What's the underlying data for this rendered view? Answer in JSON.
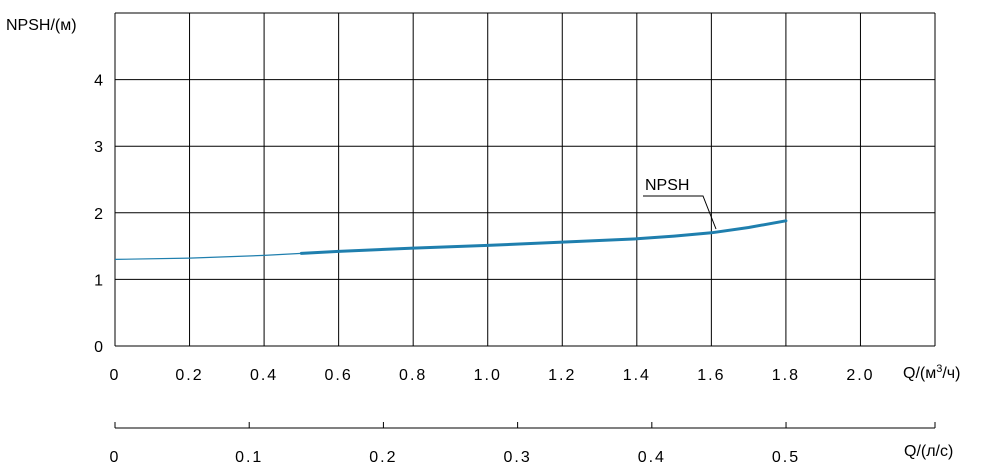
{
  "chart_data": {
    "type": "line",
    "ylabel": "NPSH/(м)",
    "xlabel_main_prefix": "Q/(м",
    "xlabel_main_sup": "3",
    "xlabel_main_suffix": "/ч)",
    "xlabel_secondary": "Q/(л/с)",
    "x_ticks": [
      "0",
      "0.2",
      "0.4",
      "0.6",
      "0.8",
      "1.0",
      "1.2",
      "1.4",
      "1.6",
      "1.8",
      "2.0"
    ],
    "y_ticks": [
      "0",
      "1",
      "2",
      "3",
      "4"
    ],
    "x2_ticks": [
      "0",
      "0.1",
      "0.2",
      "0.3",
      "0.4",
      "0.5"
    ],
    "xlim": [
      0,
      2.2
    ],
    "ylim": [
      0,
      5
    ],
    "x2lim": [
      0,
      0.611
    ],
    "grid": true,
    "series": [
      {
        "name": "NPSH",
        "color": "#1f7fae",
        "x": [
          0,
          0.2,
          0.4,
          0.5,
          0.6,
          0.8,
          1.0,
          1.2,
          1.4,
          1.5,
          1.6,
          1.7,
          1.8
        ],
        "y": [
          1.3,
          1.32,
          1.36,
          1.39,
          1.42,
          1.47,
          1.51,
          1.56,
          1.61,
          1.65,
          1.7,
          1.78,
          1.88
        ],
        "bold_from_x": 0.5
      }
    ]
  }
}
